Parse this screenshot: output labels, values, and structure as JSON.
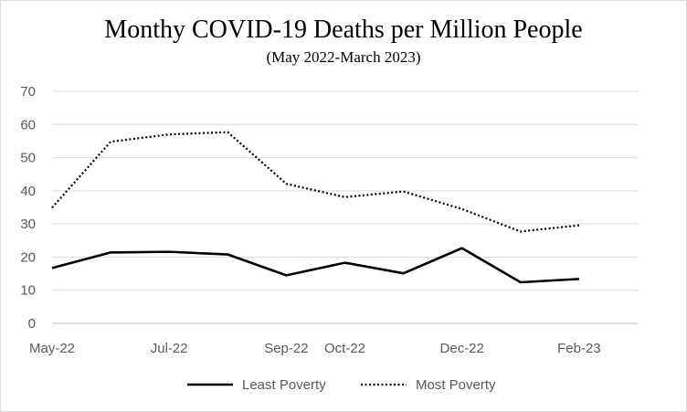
{
  "chart_data": {
    "type": "line",
    "title": "Monthy COVID-19 Deaths per Million People",
    "subtitle": "(May 2022-March 2023)",
    "xlabel": "",
    "ylabel": "",
    "ylim": [
      0,
      70
    ],
    "yticks": [
      "0",
      "10",
      "20",
      "30",
      "40",
      "50",
      "60",
      "70"
    ],
    "x": [
      "May-22",
      "Jun-22",
      "Jul-22",
      "Aug-22",
      "Sep-22",
      "Oct-22",
      "Nov-22",
      "Dec-22",
      "Jan-23",
      "Feb-23",
      "Mar-23"
    ],
    "xtick_labels": [
      {
        "label": "May-22",
        "index": 0
      },
      {
        "label": "Jul-22",
        "index": 2
      },
      {
        "label": "Sep-22",
        "index": 4
      },
      {
        "label": "Oct-22",
        "index": 5
      },
      {
        "label": "Dec-22",
        "index": 7
      },
      {
        "label": "Feb-23",
        "index": 9
      }
    ],
    "series": [
      {
        "name": "Least Poverty",
        "style": "solid",
        "color": "#000000",
        "values": [
          16.7,
          21.4,
          21.6,
          20.8,
          14.5,
          18.3,
          15.1,
          22.7,
          12.4,
          13.4,
          null
        ]
      },
      {
        "name": "Most Poverty",
        "style": "dotted",
        "color": "#000000",
        "values": [
          34.9,
          54.8,
          57.0,
          57.7,
          42.1,
          38.1,
          39.8,
          34.5,
          27.7,
          29.6,
          null
        ]
      }
    ],
    "grid": true,
    "legend": "bottom"
  }
}
